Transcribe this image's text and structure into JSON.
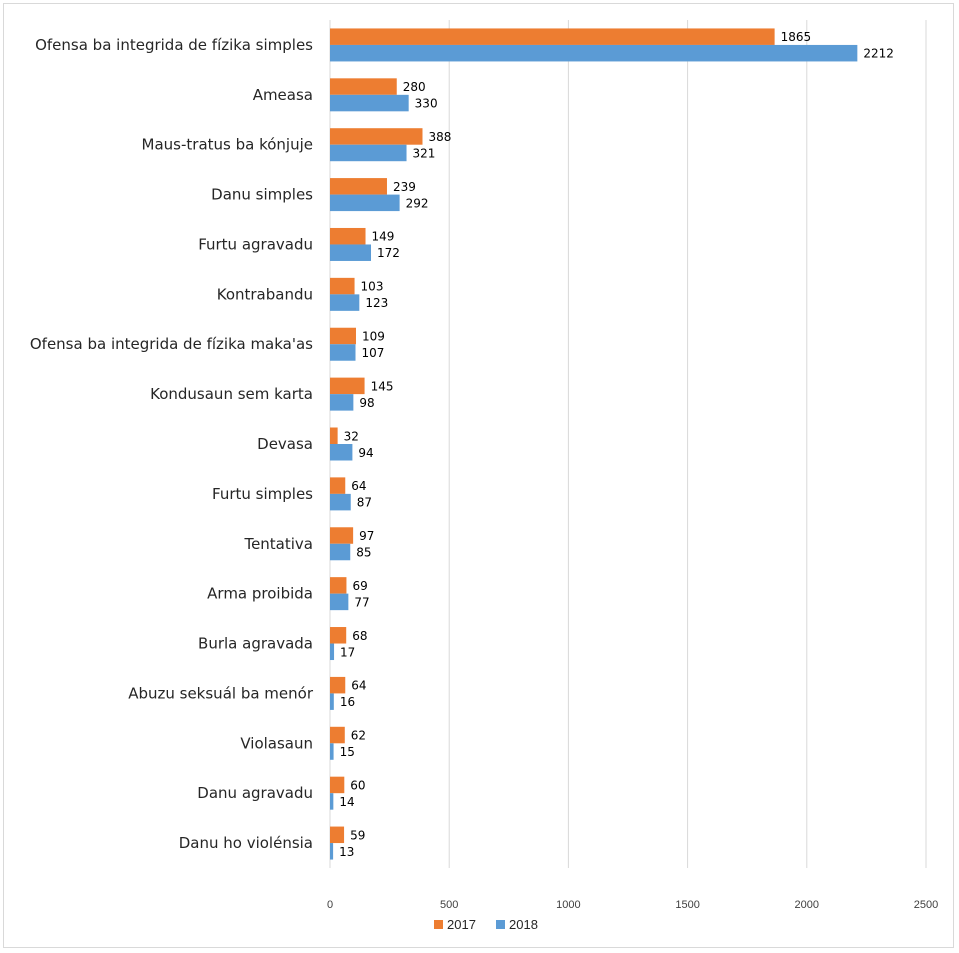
{
  "chart_data": {
    "type": "bar",
    "orientation": "horizontal",
    "categories": [
      "Ofensa ba integrida de fízika simples",
      "Ameasa",
      "Maus-tratus ba kónjuje",
      "Danu simples",
      "Furtu agravadu",
      "Kontrabandu",
      "Ofensa ba integrida de fízika maka'as",
      "Kondusaun sem karta",
      "Devasa",
      "Furtu simples",
      "Tentativa",
      "Arma proibida",
      "Burla agravada",
      "Abuzu seksuál ba menór",
      "Violasaun",
      "Danu agravadu",
      "Danu ho violénsia"
    ],
    "series": [
      {
        "name": "2017",
        "color": "#ED7D31",
        "values": [
          1865,
          280,
          388,
          239,
          149,
          103,
          109,
          145,
          32,
          64,
          97,
          69,
          68,
          64,
          62,
          60,
          59
        ]
      },
      {
        "name": "2018",
        "color": "#5B9BD5",
        "values": [
          2212,
          330,
          321,
          292,
          172,
          123,
          107,
          98,
          94,
          87,
          85,
          77,
          17,
          16,
          15,
          14,
          13
        ]
      }
    ],
    "xlim": [
      0,
      2500
    ],
    "x_ticks": [
      0,
      500,
      1000,
      1500,
      2000,
      2500
    ],
    "grid": true,
    "legend_position": "bottom",
    "title": "",
    "xlabel": "",
    "ylabel": ""
  },
  "colors": {
    "gridline": "#d9d9d9",
    "border": "#d9d9d9"
  }
}
